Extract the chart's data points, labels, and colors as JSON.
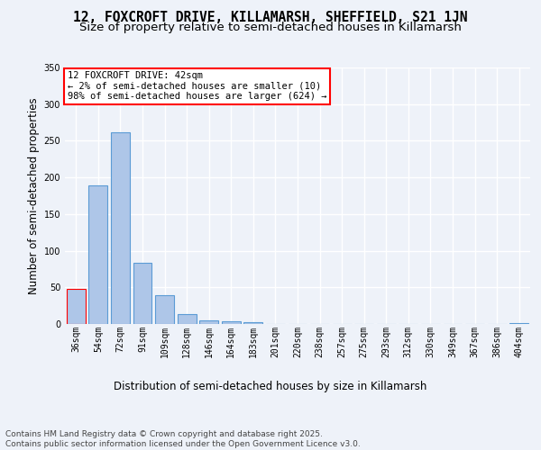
{
  "title_line1": "12, FOXCROFT DRIVE, KILLAMARSH, SHEFFIELD, S21 1JN",
  "title_line2": "Size of property relative to semi-detached houses in Killamarsh",
  "xlabel": "Distribution of semi-detached houses by size in Killamarsh",
  "ylabel": "Number of semi-detached properties",
  "categories": [
    "36sqm",
    "54sqm",
    "72sqm",
    "91sqm",
    "109sqm",
    "128sqm",
    "146sqm",
    "164sqm",
    "183sqm",
    "201sqm",
    "220sqm",
    "238sqm",
    "257sqm",
    "275sqm",
    "293sqm",
    "312sqm",
    "330sqm",
    "349sqm",
    "367sqm",
    "386sqm",
    "404sqm"
  ],
  "values": [
    48,
    189,
    261,
    84,
    39,
    13,
    5,
    4,
    2,
    0,
    0,
    0,
    0,
    0,
    0,
    0,
    0,
    0,
    0,
    0,
    1
  ],
  "bar_color": "#aec6e8",
  "bar_edge_color": "#5b9bd5",
  "highlight_bar_index": 0,
  "highlight_edge_color": "#ff0000",
  "annotation_text": "12 FOXCROFT DRIVE: 42sqm\n← 2% of semi-detached houses are smaller (10)\n98% of semi-detached houses are larger (624) →",
  "annotation_box_color": "#ffffff",
  "annotation_box_edge_color": "#ff0000",
  "footer_text": "Contains HM Land Registry data © Crown copyright and database right 2025.\nContains public sector information licensed under the Open Government Licence v3.0.",
  "ylim": [
    0,
    350
  ],
  "yticks": [
    0,
    50,
    100,
    150,
    200,
    250,
    300,
    350
  ],
  "background_color": "#eef2f9",
  "plot_background_color": "#eef2f9",
  "grid_color": "#ffffff",
  "title_fontsize": 10.5,
  "subtitle_fontsize": 9.5,
  "axis_label_fontsize": 8.5,
  "tick_fontsize": 7,
  "footer_fontsize": 6.5,
  "annotation_fontsize": 7.5
}
